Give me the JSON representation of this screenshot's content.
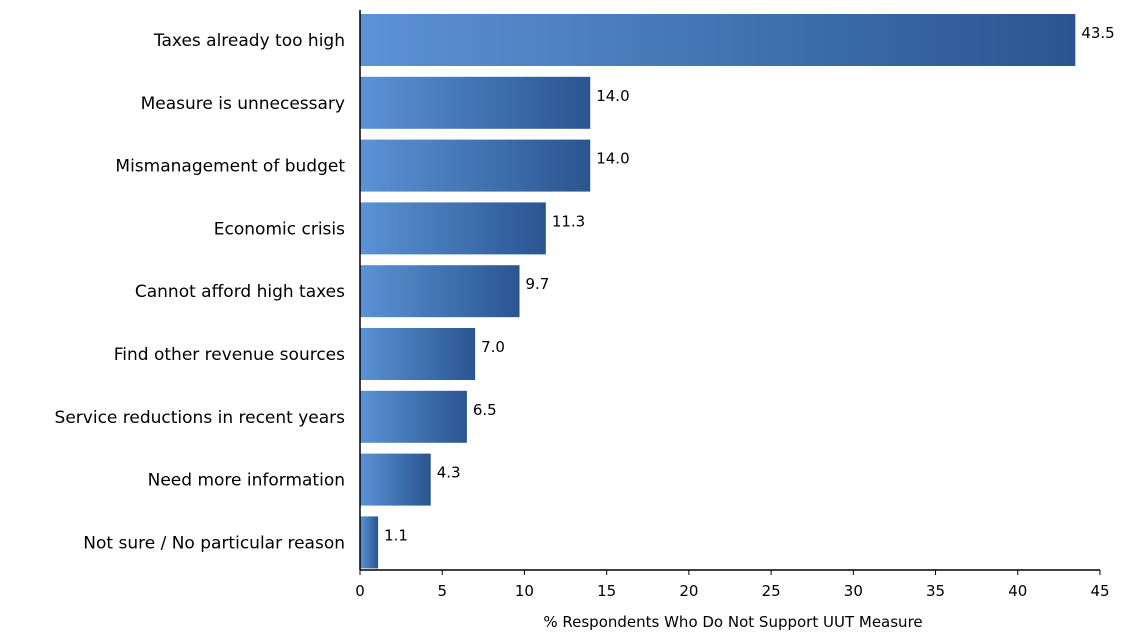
{
  "chart_data": {
    "type": "bar",
    "orientation": "horizontal",
    "categories": [
      "Taxes already too high",
      "Measure is unnecessary",
      "Mismanagement of budget",
      "Economic crisis",
      "Cannot afford high taxes",
      "Find other revenue sources",
      "Service reductions in recent years",
      "Need more information",
      "Not sure / No particular reason"
    ],
    "values": [
      43.5,
      14.0,
      14.0,
      11.3,
      9.7,
      7.0,
      6.5,
      4.3,
      1.1
    ],
    "value_labels": [
      "43.5",
      "14.0",
      "14.0",
      "11.3",
      "9.7",
      "7.0",
      "6.5",
      "4.3",
      "1.1"
    ],
    "title": "",
    "xlabel": "% Respondents Who Do Not Support UUT Measure",
    "ylabel": "",
    "xlim": [
      0,
      45
    ],
    "xticks": [
      0,
      5,
      10,
      15,
      20,
      25,
      30,
      35,
      40,
      45
    ],
    "grid": false,
    "legend": "none",
    "colors": {
      "bar_light": "#5b93d6",
      "bar_dark": "#2a5590",
      "axis": "#000000"
    }
  }
}
